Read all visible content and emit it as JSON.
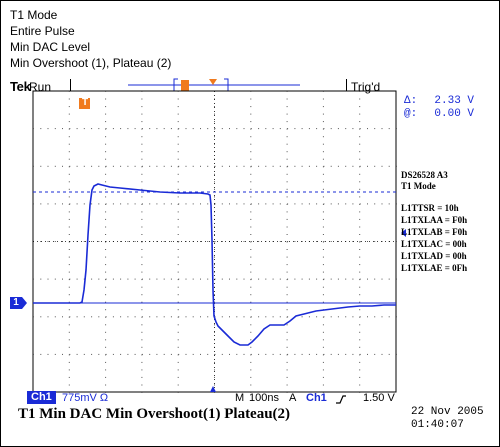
{
  "header": {
    "lines": [
      "T1 Mode",
      "Entire Pulse",
      "Min DAC Level",
      "Min Overshoot (1), Plateau (2)"
    ],
    "brand": "Tek",
    "run_state": "Run",
    "trig_state": "Trig'd"
  },
  "cursor_readout": {
    "delta_label": "Δ:",
    "delta_value": "2.33 V",
    "at_label": "@:",
    "at_value": "0.00 V"
  },
  "device": {
    "id_line1": "DS26528  A3",
    "id_line2": "T1 Mode",
    "registers": [
      "L1TTSR = 10h",
      "L1TXLAA = F0h",
      "L1TXLAB = F0h",
      "L1TXLAC = 00h",
      "L1TXLAD = 00h",
      "L1TXLAE = 0Fh"
    ]
  },
  "markers": {
    "trigger_marker": "T",
    "channel_marker": "1"
  },
  "status_bar": {
    "channel": "Ch1",
    "volts_per_div": "775mV Ω",
    "mode": "M",
    "time_per_div": "100ns",
    "acq_label": "A",
    "trig_channel": "Ch1",
    "trig_slope": "↑",
    "trig_level": "1.50 V"
  },
  "caption": "T1 Min DAC Min Overshoot(1) Plateau(2)",
  "timestamp": {
    "date": "22 Nov 2005",
    "time": "01:40:07"
  },
  "colors": {
    "trace": "#1a2bd6",
    "grid": "#000000",
    "marker": "#f07a1e",
    "badge": "#1a2bd6"
  }
}
